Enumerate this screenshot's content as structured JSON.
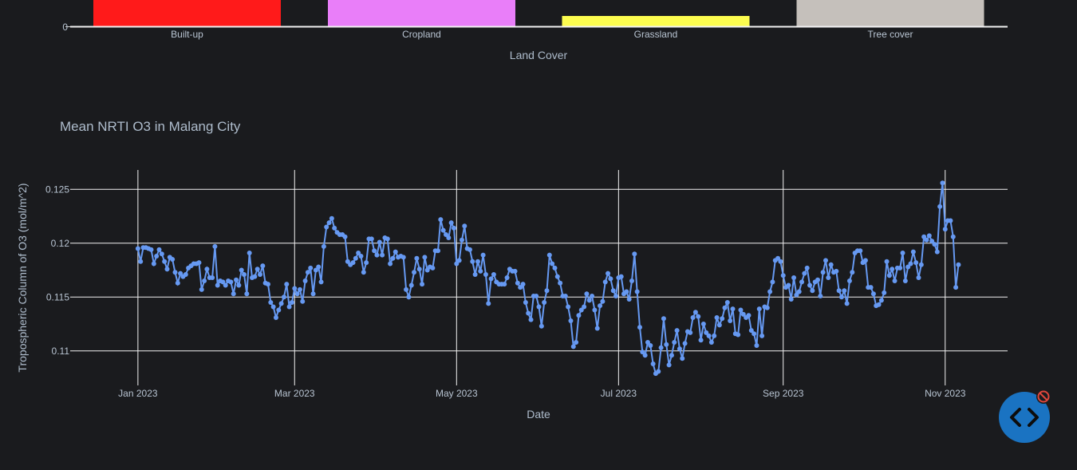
{
  "bar_chart": {
    "xlabel": "Land Cover",
    "y_tick_zero": "0",
    "colors": [
      "#ff1a1a",
      "#e97ef9",
      "#fdfd4f",
      "#c5c0bb"
    ]
  },
  "line_chart": {
    "title": "Mean NRTI O3 in Malang City",
    "xlabel": "Date",
    "ylabel": "Tropospheric Column of O3 (mol/m^2)",
    "x_ticks": [
      "Jan 2023",
      "Mar 2023",
      "May 2023",
      "Jul 2023",
      "Sep 2023",
      "Nov 2023"
    ],
    "y_ticks": [
      "0.125",
      "0.12",
      "0.115",
      "0.11"
    ],
    "line_color": "#6699f2"
  },
  "chart_data": [
    {
      "type": "bar",
      "categories": [
        "Built-up",
        "Cropland",
        "Grassland",
        "Tree cover"
      ],
      "values": [
        null,
        null,
        null,
        null
      ],
      "xlabel": "Land Cover",
      "note": "Upper portion of bars cropped; only zero baseline visible. Grassland bar is short."
    },
    {
      "type": "line",
      "title": "Mean NRTI O3 in Malang City",
      "xlabel": "Date",
      "ylabel": "Tropospheric Column of O3 (mol/m^2)",
      "ylim": [
        0.1068,
        0.1268
      ],
      "grid": true,
      "x_start": "2023-01-01",
      "x_step_days": 1,
      "series": [
        {
          "name": "Mean O3",
          "values": [
            0.1195,
            0.1183,
            0.1196,
            0.1196,
            0.1195,
            0.1194,
            0.1181,
            0.1188,
            0.1194,
            0.119,
            0.1183,
            0.1176,
            0.1187,
            0.1185,
            0.1173,
            0.1163,
            0.1172,
            0.1169,
            0.1171,
            0.1177,
            0.1179,
            0.1181,
            0.1181,
            0.1182,
            0.1157,
            0.1165,
            0.1176,
            0.1168,
            0.1168,
            0.1197,
            0.1161,
            0.1165,
            0.1164,
            0.1161,
            0.1165,
            0.1164,
            0.1153,
            0.1166,
            0.1161,
            0.1175,
            0.1171,
            0.1153,
            0.1191,
            0.1168,
            0.1169,
            0.1176,
            0.1171,
            0.1179,
            0.1163,
            0.1162,
            0.1145,
            0.1141,
            0.1131,
            0.1138,
            0.1144,
            0.115,
            0.1162,
            0.1141,
            0.1145,
            0.1158,
            0.1153,
            0.1157,
            0.1146,
            0.1165,
            0.1173,
            0.1177,
            0.1153,
            0.1175,
            0.1178,
            0.1164,
            0.1197,
            0.1215,
            0.1219,
            0.1223,
            0.1214,
            0.121,
            0.1208,
            0.1208,
            0.1206,
            0.1183,
            0.118,
            0.1182,
            0.1186,
            0.1191,
            0.1188,
            0.1173,
            0.1182,
            0.1204,
            0.1204,
            0.1193,
            0.1189,
            0.1201,
            0.1189,
            0.1205,
            0.1204,
            0.1181,
            0.1186,
            0.1192,
            0.1187,
            0.1188,
            0.1187,
            0.1157,
            0.115,
            0.1161,
            0.1173,
            0.1186,
            0.1176,
            0.1162,
            0.1187,
            0.1175,
            0.1178,
            0.1177,
            0.1193,
            0.1193,
            0.1222,
            0.1212,
            0.1208,
            0.1205,
            0.1219,
            0.1214,
            0.1181,
            0.1184,
            0.1203,
            0.1216,
            0.1195,
            0.1194,
            0.1183,
            0.1171,
            0.1183,
            0.1174,
            0.1189,
            0.1171,
            0.1144,
            0.1167,
            0.1171,
            0.1164,
            0.1162,
            0.1162,
            0.1162,
            0.1168,
            0.1176,
            0.1174,
            0.1174,
            0.1163,
            0.1159,
            0.1162,
            0.1145,
            0.1135,
            0.1129,
            0.1151,
            0.1151,
            0.1141,
            0.1123,
            0.1145,
            0.1156,
            0.1189,
            0.1181,
            0.1177,
            0.1169,
            0.1163,
            0.1151,
            0.1151,
            0.1141,
            0.1128,
            0.1104,
            0.1108,
            0.1133,
            0.1138,
            0.1141,
            0.1153,
            0.1147,
            0.1151,
            0.1138,
            0.1121,
            0.1142,
            0.1146,
            0.1164,
            0.1172,
            0.1167,
            0.1156,
            0.1151,
            0.1168,
            0.1169,
            0.1153,
            0.1155,
            0.1148,
            0.1165,
            0.119,
            0.1155,
            0.1122,
            0.1099,
            0.1096,
            0.1108,
            0.1105,
            0.1088,
            0.1079,
            0.1081,
            0.1103,
            0.113,
            0.1106,
            0.1087,
            0.1096,
            0.1108,
            0.1119,
            0.1102,
            0.1093,
            0.1107,
            0.1118,
            0.1117,
            0.1131,
            0.1136,
            0.1132,
            0.111,
            0.1125,
            0.1117,
            0.1114,
            0.1108,
            0.1114,
            0.1131,
            0.1124,
            0.113,
            0.114,
            0.1145,
            0.1128,
            0.1139,
            0.1116,
            0.1115,
            0.1138,
            0.1134,
            0.1131,
            0.1133,
            0.1119,
            0.1116,
            0.1105,
            0.1139,
            0.1114,
            0.1141,
            0.114,
            0.1155,
            0.1164,
            0.1184,
            0.1186,
            0.1183,
            0.117,
            0.1159,
            0.1161,
            0.1148,
            0.1168,
            0.1152,
            0.1155,
            0.1164,
            0.1172,
            0.1177,
            0.1161,
            0.1156,
            0.1164,
            0.1166,
            0.1151,
            0.1173,
            0.1184,
            0.1168,
            0.118,
            0.1173,
            0.1174,
            0.1156,
            0.115,
            0.1156,
            0.1144,
            0.1165,
            0.1173,
            0.1191,
            0.1193,
            0.1193,
            0.1182,
            0.1184,
            0.1159,
            0.1159,
            0.1153,
            0.1142,
            0.1143,
            0.1147,
            0.1154,
            0.1183,
            0.117,
            0.1176,
            0.1165,
            0.1177,
            0.1177,
            0.1191,
            0.1165,
            0.1178,
            0.1181,
            0.1192,
            0.1182,
            0.1168,
            0.118,
            0.1206,
            0.1203,
            0.1207,
            0.1202,
            0.1199,
            0.1192,
            0.1234,
            0.1256,
            0.1213,
            0.1221,
            0.1221,
            0.1206,
            0.1159,
            0.118
          ]
        }
      ]
    }
  ]
}
